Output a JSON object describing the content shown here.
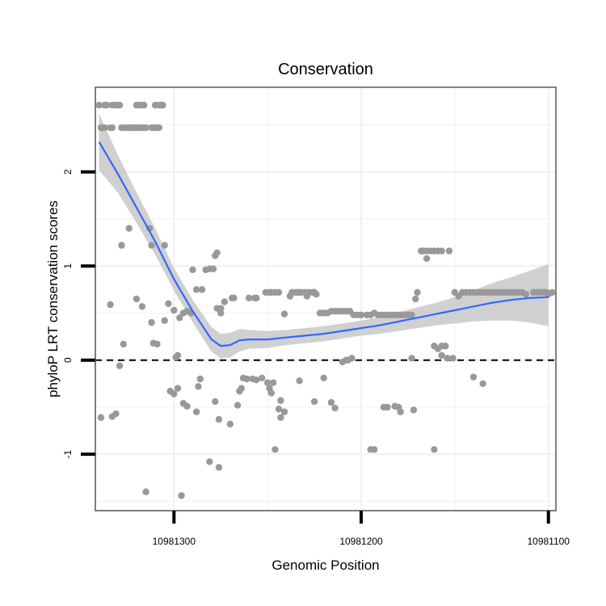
{
  "chart_data": {
    "type": "scatter",
    "title": "Conservation",
    "xlabel": "Genomic Position",
    "ylabel": "phyloP LRT conservation scores",
    "x_reversed": true,
    "xlim": [
      10981342,
      10981096
    ],
    "ylim": [
      -1.6,
      2.9
    ],
    "x_ticks": [
      10981300,
      10981200,
      10981100
    ],
    "x_tick_labels": [
      "10981300",
      "10981200",
      "10981100"
    ],
    "y_ticks": [
      -1,
      0,
      1,
      2
    ],
    "y_tick_labels": [
      "-1",
      "0",
      "1",
      "2"
    ],
    "reference_line": {
      "y": 0,
      "style": "dashed"
    },
    "grid": true,
    "colors": {
      "points": "#999999",
      "smooth": "#3366ff",
      "ribbon": "#c8c8c8",
      "panel_border": "#7f7f7f",
      "grid": "#f0f0f0"
    },
    "points": [
      {
        "x": 10981340,
        "y": 2.71
      },
      {
        "x": 10981337,
        "y": 2.71
      },
      {
        "x": 10981336,
        "y": 2.71
      },
      {
        "x": 10981333,
        "y": 2.71
      },
      {
        "x": 10981331,
        "y": 2.71
      },
      {
        "x": 10981330,
        "y": 2.71
      },
      {
        "x": 10981329,
        "y": 2.71
      },
      {
        "x": 10981320,
        "y": 2.71
      },
      {
        "x": 10981318,
        "y": 2.71
      },
      {
        "x": 10981317,
        "y": 2.71
      },
      {
        "x": 10981316,
        "y": 2.71
      },
      {
        "x": 10981310,
        "y": 2.71
      },
      {
        "x": 10981308,
        "y": 2.71
      },
      {
        "x": 10981307,
        "y": 2.71
      },
      {
        "x": 10981306,
        "y": 2.71
      },
      {
        "x": 10981339,
        "y": 2.47
      },
      {
        "x": 10981338,
        "y": 2.47
      },
      {
        "x": 10981337,
        "y": 2.47
      },
      {
        "x": 10981334,
        "y": 2.47
      },
      {
        "x": 10981333,
        "y": 2.47
      },
      {
        "x": 10981328,
        "y": 2.47
      },
      {
        "x": 10981326,
        "y": 2.47
      },
      {
        "x": 10981325,
        "y": 2.47
      },
      {
        "x": 10981324,
        "y": 2.47
      },
      {
        "x": 10981323,
        "y": 2.47
      },
      {
        "x": 10981322,
        "y": 2.47
      },
      {
        "x": 10981321,
        "y": 2.47
      },
      {
        "x": 10981320,
        "y": 2.47
      },
      {
        "x": 10981318,
        "y": 2.47
      },
      {
        "x": 10981317,
        "y": 2.47
      },
      {
        "x": 10981316,
        "y": 2.47
      },
      {
        "x": 10981315,
        "y": 2.47
      },
      {
        "x": 10981312,
        "y": 2.47
      },
      {
        "x": 10981311,
        "y": 2.47
      },
      {
        "x": 10981310,
        "y": 2.47
      },
      {
        "x": 10981309,
        "y": 2.47
      },
      {
        "x": 10981308,
        "y": 2.47
      },
      {
        "x": 10981313,
        "y": 1.4
      },
      {
        "x": 10981324,
        "y": 1.4
      },
      {
        "x": 10981328,
        "y": 1.22
      },
      {
        "x": 10981312,
        "y": 1.22
      },
      {
        "x": 10981305,
        "y": 1.22
      },
      {
        "x": 10981334,
        "y": 0.59
      },
      {
        "x": 10981320,
        "y": 0.65
      },
      {
        "x": 10981317,
        "y": 0.57
      },
      {
        "x": 10981312,
        "y": 0.4
      },
      {
        "x": 10981305,
        "y": 0.42
      },
      {
        "x": 10981303,
        "y": 0.6
      },
      {
        "x": 10981327,
        "y": 0.17
      },
      {
        "x": 10981311,
        "y": 0.18
      },
      {
        "x": 10981309,
        "y": 0.17
      },
      {
        "x": 10981329,
        "y": -0.06
      },
      {
        "x": 10981339,
        "y": -0.61
      },
      {
        "x": 10981333,
        "y": -0.6
      },
      {
        "x": 10981331,
        "y": -0.57
      },
      {
        "x": 10981315,
        "y": -1.4
      },
      {
        "x": 10981300,
        "y": 0.53
      },
      {
        "x": 10981297,
        "y": 0.45
      },
      {
        "x": 10981295,
        "y": 0.5
      },
      {
        "x": 10981293,
        "y": 0.52
      },
      {
        "x": 10981291,
        "y": 0.5
      },
      {
        "x": 10981299,
        "y": 0.03
      },
      {
        "x": 10981298,
        "y": 0.05
      },
      {
        "x": 10981302,
        "y": -0.33
      },
      {
        "x": 10981300,
        "y": -0.36
      },
      {
        "x": 10981298,
        "y": -0.3
      },
      {
        "x": 10981295,
        "y": -0.46
      },
      {
        "x": 10981293,
        "y": -0.49
      },
      {
        "x": 10981296,
        "y": -1.44
      },
      {
        "x": 10981290,
        "y": 0.96
      },
      {
        "x": 10981288,
        "y": 0.75
      },
      {
        "x": 10981285,
        "y": 0.75
      },
      {
        "x": 10981288,
        "y": -0.55
      },
      {
        "x": 10981286,
        "y": -0.2
      },
      {
        "x": 10981287,
        "y": -0.28
      },
      {
        "x": 10981281,
        "y": -1.08
      },
      {
        "x": 10981276,
        "y": -1.14
      },
      {
        "x": 10981276,
        "y": -0.63
      },
      {
        "x": 10981277,
        "y": 0.55
      },
      {
        "x": 10981275,
        "y": 0.55
      },
      {
        "x": 10981275,
        "y": 0.5
      },
      {
        "x": 10981278,
        "y": -0.44
      },
      {
        "x": 10981283,
        "y": 0.96
      },
      {
        "x": 10981281,
        "y": 0.97
      },
      {
        "x": 10981279,
        "y": 0.97
      },
      {
        "x": 10981278,
        "y": 1.11
      },
      {
        "x": 10981277,
        "y": 1.14
      },
      {
        "x": 10981275,
        "y": 0.55
      },
      {
        "x": 10981273,
        "y": 0.62
      },
      {
        "x": 10981270,
        "y": -0.68
      },
      {
        "x": 10981269,
        "y": 0.66
      },
      {
        "x": 10981268,
        "y": 0.66
      },
      {
        "x": 10981266,
        "y": -0.48
      },
      {
        "x": 10981265,
        "y": -0.33
      },
      {
        "x": 10981264,
        "y": -0.3
      },
      {
        "x": 10981263,
        "y": -0.19
      },
      {
        "x": 10981261,
        "y": -0.2
      },
      {
        "x": 10981258,
        "y": -0.2
      },
      {
        "x": 10981256,
        "y": -0.21
      },
      {
        "x": 10981260,
        "y": 0.66
      },
      {
        "x": 10981257,
        "y": 0.66
      },
      {
        "x": 10981256,
        "y": 0.66
      },
      {
        "x": 10981251,
        "y": 0.72
      },
      {
        "x": 10981249,
        "y": 0.72
      },
      {
        "x": 10981248,
        "y": 0.72
      },
      {
        "x": 10981246,
        "y": 0.72
      },
      {
        "x": 10981244,
        "y": 0.72
      },
      {
        "x": 10981234,
        "y": 0.72
      },
      {
        "x": 10981253,
        "y": -0.19
      },
      {
        "x": 10981250,
        "y": -0.24
      },
      {
        "x": 10981249,
        "y": -0.3
      },
      {
        "x": 10981248,
        "y": -0.35
      },
      {
        "x": 10981246,
        "y": -0.95
      },
      {
        "x": 10981247,
        "y": -0.24
      },
      {
        "x": 10981244,
        "y": -0.52
      },
      {
        "x": 10981243,
        "y": -0.43
      },
      {
        "x": 10981241,
        "y": -0.55
      },
      {
        "x": 10981243,
        "y": -0.61
      },
      {
        "x": 10981241,
        "y": 0.49
      },
      {
        "x": 10981238,
        "y": 0.68
      },
      {
        "x": 10981237,
        "y": 0.72
      },
      {
        "x": 10981235,
        "y": 0.72
      },
      {
        "x": 10981233,
        "y": 0.72
      },
      {
        "x": 10981232,
        "y": 0.72
      },
      {
        "x": 10981230,
        "y": 0.72
      },
      {
        "x": 10981229,
        "y": 0.68
      },
      {
        "x": 10981228,
        "y": 0.72
      },
      {
        "x": 10981226,
        "y": 0.72
      },
      {
        "x": 10981225,
        "y": 0.72
      },
      {
        "x": 10981224,
        "y": 0.7
      },
      {
        "x": 10981233,
        "y": -0.22
      },
      {
        "x": 10981225,
        "y": -0.44
      },
      {
        "x": 10981220,
        "y": -0.19
      },
      {
        "x": 10981216,
        "y": -0.45
      },
      {
        "x": 10981214,
        "y": -0.51
      },
      {
        "x": 10981210,
        "y": -0.02
      },
      {
        "x": 10981208,
        "y": 0.0
      },
      {
        "x": 10981207,
        "y": 0.0
      },
      {
        "x": 10981205,
        "y": 0.02
      },
      {
        "x": 10981222,
        "y": 0.5
      },
      {
        "x": 10981220,
        "y": 0.5
      },
      {
        "x": 10981218,
        "y": 0.5
      },
      {
        "x": 10981216,
        "y": 0.52
      },
      {
        "x": 10981214,
        "y": 0.52
      },
      {
        "x": 10981212,
        "y": 0.52
      },
      {
        "x": 10981210,
        "y": 0.52
      },
      {
        "x": 10981208,
        "y": 0.52
      },
      {
        "x": 10981206,
        "y": 0.52
      },
      {
        "x": 10981204,
        "y": 0.48
      },
      {
        "x": 10981202,
        "y": 0.48
      },
      {
        "x": 10981200,
        "y": 0.48
      },
      {
        "x": 10981197,
        "y": 0.48
      },
      {
        "x": 10981195,
        "y": 0.48
      },
      {
        "x": 10981193,
        "y": 0.5
      },
      {
        "x": 10981191,
        "y": 0.48
      },
      {
        "x": 10981189,
        "y": 0.48
      },
      {
        "x": 10981187,
        "y": 0.48
      },
      {
        "x": 10981185,
        "y": 0.48
      },
      {
        "x": 10981183,
        "y": 0.48
      },
      {
        "x": 10981181,
        "y": 0.48
      },
      {
        "x": 10981179,
        "y": 0.48
      },
      {
        "x": 10981177,
        "y": 0.48
      },
      {
        "x": 10981175,
        "y": 0.48
      },
      {
        "x": 10981173,
        "y": 0.48
      },
      {
        "x": 10981195,
        "y": -0.95
      },
      {
        "x": 10981193,
        "y": -0.95
      },
      {
        "x": 10981188,
        "y": -0.5
      },
      {
        "x": 10981186,
        "y": -0.5
      },
      {
        "x": 10981182,
        "y": -0.49
      },
      {
        "x": 10981180,
        "y": -0.5
      },
      {
        "x": 10981179,
        "y": -0.55
      },
      {
        "x": 10981172,
        "y": -0.53
      },
      {
        "x": 10981171,
        "y": 0.65
      },
      {
        "x": 10981170,
        "y": 0.72
      },
      {
        "x": 10981173,
        "y": 0.02
      },
      {
        "x": 10981168,
        "y": 1.16
      },
      {
        "x": 10981167,
        "y": 1.16
      },
      {
        "x": 10981165,
        "y": 1.16
      },
      {
        "x": 10981163,
        "y": 1.16
      },
      {
        "x": 10981161,
        "y": 1.16
      },
      {
        "x": 10981159,
        "y": 1.16
      },
      {
        "x": 10981157,
        "y": 1.16
      },
      {
        "x": 10981153,
        "y": 1.16
      },
      {
        "x": 10981165,
        "y": 1.08
      },
      {
        "x": 10981161,
        "y": 0.15
      },
      {
        "x": 10981159,
        "y": 0.12
      },
      {
        "x": 10981157,
        "y": 0.15
      },
      {
        "x": 10981155,
        "y": 0.15
      },
      {
        "x": 10981157,
        "y": 0.05
      },
      {
        "x": 10981154,
        "y": 0.02
      },
      {
        "x": 10981151,
        "y": 0.02
      },
      {
        "x": 10981161,
        "y": -0.95
      },
      {
        "x": 10981150,
        "y": 0.72
      },
      {
        "x": 10981148,
        "y": 0.68
      },
      {
        "x": 10981146,
        "y": 0.72
      },
      {
        "x": 10981144,
        "y": 0.72
      },
      {
        "x": 10981142,
        "y": 0.72
      },
      {
        "x": 10981140,
        "y": 0.72
      },
      {
        "x": 10981138,
        "y": 0.72
      },
      {
        "x": 10981136,
        "y": 0.72
      },
      {
        "x": 10981134,
        "y": 0.72
      },
      {
        "x": 10981132,
        "y": 0.72
      },
      {
        "x": 10981130,
        "y": 0.72
      },
      {
        "x": 10981128,
        "y": 0.72
      },
      {
        "x": 10981126,
        "y": 0.72
      },
      {
        "x": 10981124,
        "y": 0.72
      },
      {
        "x": 10981122,
        "y": 0.72
      },
      {
        "x": 10981120,
        "y": 0.72
      },
      {
        "x": 10981118,
        "y": 0.72
      },
      {
        "x": 10981116,
        "y": 0.72
      },
      {
        "x": 10981114,
        "y": 0.72
      },
      {
        "x": 10981112,
        "y": 0.7
      },
      {
        "x": 10981108,
        "y": 0.72
      },
      {
        "x": 10981106,
        "y": 0.72
      },
      {
        "x": 10981104,
        "y": 0.72
      },
      {
        "x": 10981102,
        "y": 0.72
      },
      {
        "x": 10981101,
        "y": 0.72
      },
      {
        "x": 10981100,
        "y": 0.7
      },
      {
        "x": 10981098,
        "y": 0.72
      },
      {
        "x": 10981140,
        "y": -0.18
      },
      {
        "x": 10981135,
        "y": -0.25
      }
    ],
    "smooth": [
      {
        "x": 10981340,
        "y": 2.32,
        "lo": 2.02,
        "hi": 2.62
      },
      {
        "x": 10981330,
        "y": 1.98,
        "lo": 1.78,
        "hi": 2.18
      },
      {
        "x": 10981320,
        "y": 1.62,
        "lo": 1.46,
        "hi": 1.78
      },
      {
        "x": 10981310,
        "y": 1.26,
        "lo": 1.12,
        "hi": 1.4
      },
      {
        "x": 10981300,
        "y": 0.86,
        "lo": 0.74,
        "hi": 0.98
      },
      {
        "x": 10981290,
        "y": 0.52,
        "lo": 0.4,
        "hi": 0.64
      },
      {
        "x": 10981280,
        "y": 0.22,
        "lo": 0.09,
        "hi": 0.35
      },
      {
        "x": 10981275,
        "y": 0.15,
        "lo": 0.02,
        "hi": 0.28
      },
      {
        "x": 10981270,
        "y": 0.16,
        "lo": 0.03,
        "hi": 0.29
      },
      {
        "x": 10981265,
        "y": 0.21,
        "lo": 0.09,
        "hi": 0.33
      },
      {
        "x": 10981260,
        "y": 0.22,
        "lo": 0.12,
        "hi": 0.32
      },
      {
        "x": 10981250,
        "y": 0.22,
        "lo": 0.13,
        "hi": 0.31
      },
      {
        "x": 10981240,
        "y": 0.24,
        "lo": 0.16,
        "hi": 0.32
      },
      {
        "x": 10981230,
        "y": 0.26,
        "lo": 0.18,
        "hi": 0.34
      },
      {
        "x": 10981220,
        "y": 0.28,
        "lo": 0.2,
        "hi": 0.36
      },
      {
        "x": 10981210,
        "y": 0.31,
        "lo": 0.23,
        "hi": 0.39
      },
      {
        "x": 10981200,
        "y": 0.34,
        "lo": 0.26,
        "hi": 0.42
      },
      {
        "x": 10981190,
        "y": 0.37,
        "lo": 0.28,
        "hi": 0.46
      },
      {
        "x": 10981180,
        "y": 0.41,
        "lo": 0.31,
        "hi": 0.51
      },
      {
        "x": 10981170,
        "y": 0.45,
        "lo": 0.34,
        "hi": 0.56
      },
      {
        "x": 10981160,
        "y": 0.49,
        "lo": 0.37,
        "hi": 0.61
      },
      {
        "x": 10981150,
        "y": 0.53,
        "lo": 0.39,
        "hi": 0.67
      },
      {
        "x": 10981140,
        "y": 0.57,
        "lo": 0.41,
        "hi": 0.74
      },
      {
        "x": 10981130,
        "y": 0.61,
        "lo": 0.42,
        "hi": 0.82
      },
      {
        "x": 10981120,
        "y": 0.64,
        "lo": 0.42,
        "hi": 0.88
      },
      {
        "x": 10981110,
        "y": 0.66,
        "lo": 0.4,
        "hi": 0.95
      },
      {
        "x": 10981100,
        "y": 0.67,
        "lo": 0.36,
        "hi": 1.02
      }
    ]
  }
}
